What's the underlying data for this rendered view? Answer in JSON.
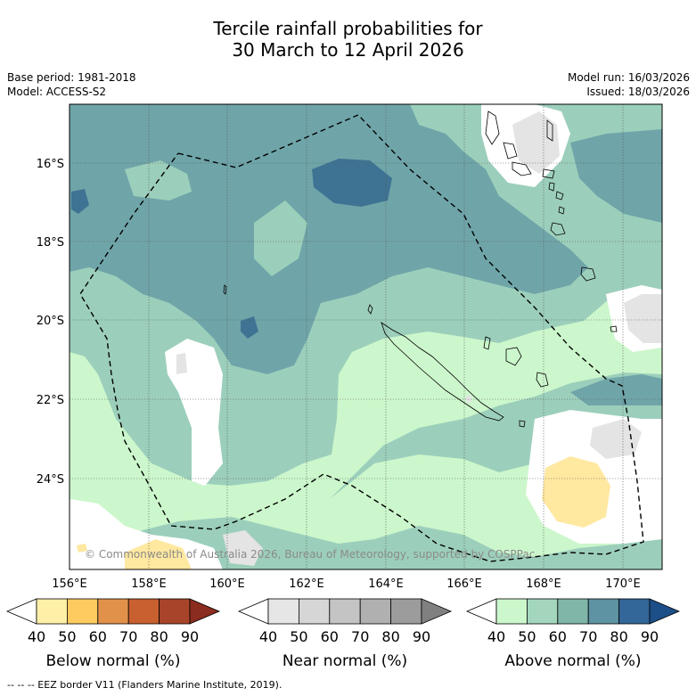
{
  "title": {
    "line1": "Tercile rainfall probabilities for",
    "line2": "30 March to 12 April 2026"
  },
  "meta": {
    "base_period": "Base period: 1981-2018",
    "model": "Model: ACCESS-S2",
    "model_run": "Model run: 16/03/2026",
    "issued": "Issued: 18/03/2026"
  },
  "map": {
    "lon_labels": [
      "156°E",
      "158°E",
      "160°E",
      "162°E",
      "164°E",
      "166°E",
      "168°E",
      "170°E"
    ],
    "lat_labels": [
      "16°S",
      "18°S",
      "20°S",
      "22°S",
      "24°S"
    ],
    "copyright": "© Commonwealth of Australia 2026, Bureau of Meteorology, supported by COSPPac"
  },
  "colors": {
    "above_50": "#ccf7cc",
    "above_60": "#9ccfbb",
    "above_70": "#6fa5a9",
    "above_80": "#3f7393",
    "near_40": "#e4e4e4",
    "below_50": "#ffe8a0",
    "ocean_lt40": "#ffffff"
  },
  "legends": [
    {
      "title": "Below normal (%)",
      "ticks": [
        "40",
        "50",
        "60",
        "70",
        "80",
        "90"
      ],
      "colors": [
        "#ffffff",
        "#fff0a8",
        "#fdcb5f",
        "#e2914a",
        "#c86030",
        "#a8442a",
        "#8a2c1e"
      ]
    },
    {
      "title": "Near normal (%)",
      "ticks": [
        "40",
        "50",
        "60",
        "70",
        "80",
        "90"
      ],
      "colors": [
        "#ffffff",
        "#e6e6e6",
        "#d6d6d6",
        "#c4c4c4",
        "#b0b0b0",
        "#9c9c9c",
        "#808080"
      ]
    },
    {
      "title": "Above normal (%)",
      "ticks": [
        "40",
        "50",
        "60",
        "70",
        "80",
        "90"
      ],
      "colors": [
        "#ffffff",
        "#ccf7cc",
        "#a4d6be",
        "#80b6a8",
        "#5d93a2",
        "#336699",
        "#1c4f88"
      ]
    }
  ],
  "footer": "--  --  -- EEZ border V11 (Flanders Marine Institute, 2019)."
}
